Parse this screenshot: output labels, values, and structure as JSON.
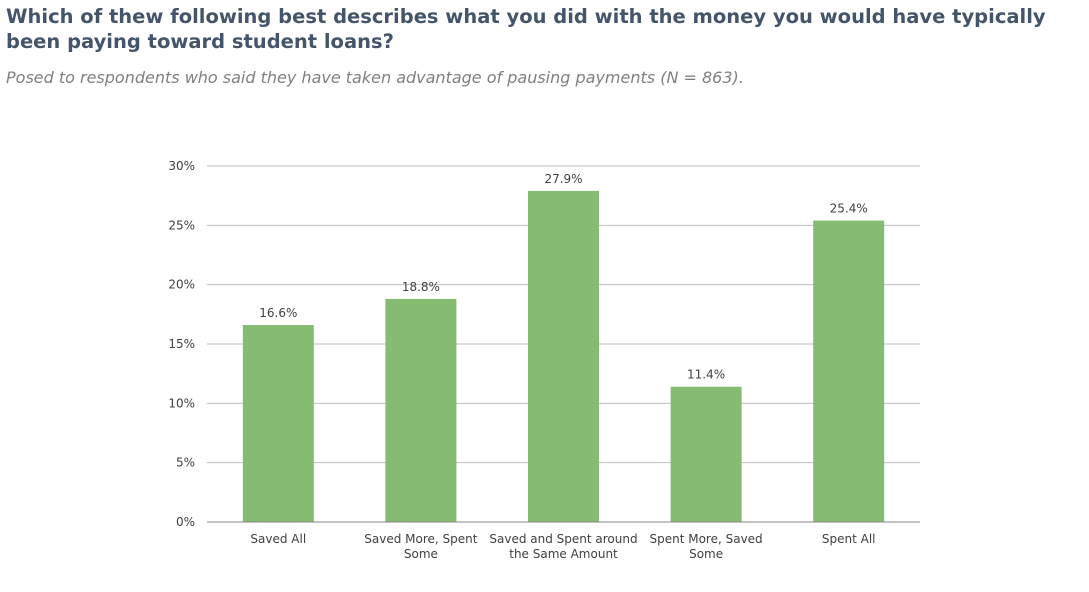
{
  "title": "Which of thew following best describes what you did with the money you would have typically been paying toward student loans?",
  "subtitle": "Posed to respondents who said they have taken advantage of pausing payments (N = 863).",
  "chart_data": {
    "type": "bar",
    "categories": [
      [
        "Saved All"
      ],
      [
        "Saved More, Spent",
        "Some"
      ],
      [
        "Saved and Spent around",
        "the Same Amount"
      ],
      [
        "Spent More, Saved",
        "Some"
      ],
      [
        "Spent All"
      ]
    ],
    "values": [
      16.6,
      18.8,
      27.9,
      11.4,
      25.4
    ],
    "data_labels": [
      "16.6%",
      "18.8%",
      "27.9%",
      "11.4%",
      "25.4%"
    ],
    "ylim": [
      0,
      30
    ],
    "yticks": [
      0,
      5,
      10,
      15,
      20,
      25,
      30
    ],
    "ytick_labels": [
      "0%",
      "5%",
      "10%",
      "15%",
      "20%",
      "25%",
      "30%"
    ],
    "xlabel": "",
    "ylabel": "",
    "grid": true,
    "legend": "none",
    "bar_color": "#86bb72",
    "grid_color": "#bfbfbf",
    "axis_color": "#868686"
  }
}
